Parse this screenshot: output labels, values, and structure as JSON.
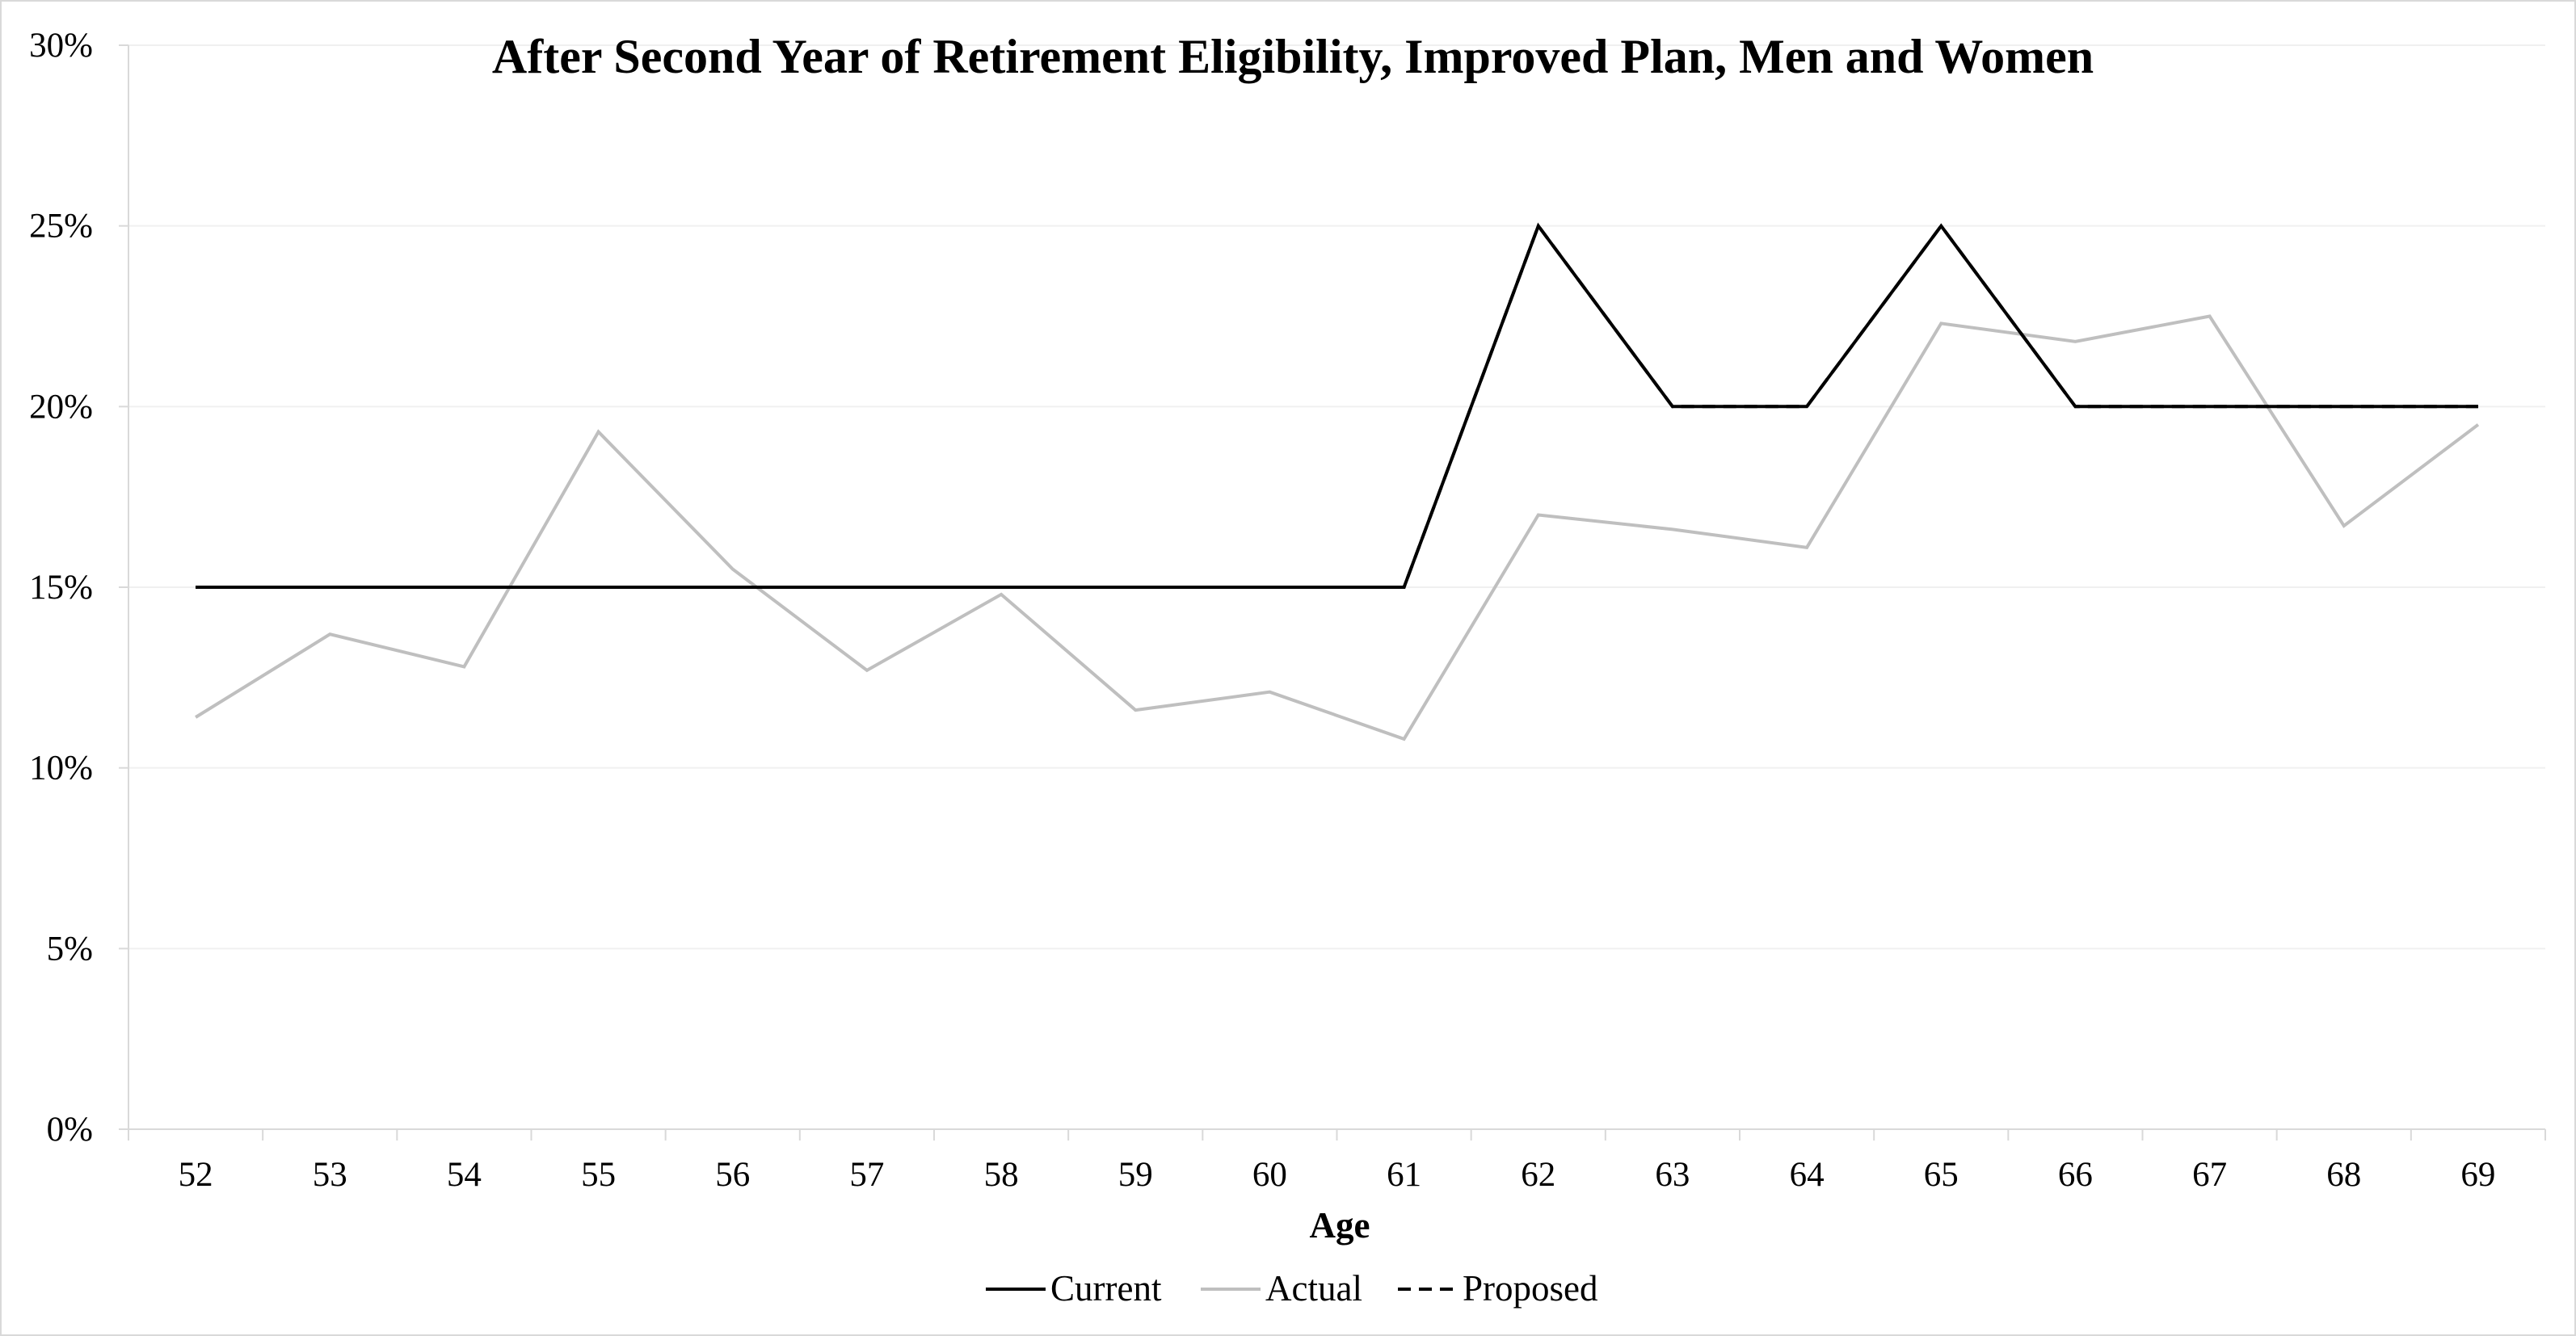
{
  "chart_data": {
    "type": "line",
    "title": "After Second Year of Retirement Eligibility, Improved Plan, Men and Women",
    "xlabel": "Age",
    "ylabel": "",
    "x": [
      "52",
      "53",
      "54",
      "55",
      "56",
      "57",
      "58",
      "59",
      "60",
      "61",
      "62",
      "63",
      "64",
      "65",
      "66",
      "67",
      "68",
      "69"
    ],
    "ylim": [
      0,
      30
    ],
    "yticks": [
      0,
      5,
      10,
      15,
      20,
      25,
      30
    ],
    "ytick_labels": [
      "0%",
      "5%",
      "10%",
      "15%",
      "20%",
      "25%",
      "30%"
    ],
    "grid": "horizontal",
    "legend_position": "bottom",
    "series": [
      {
        "name": "Current",
        "color": "#000000",
        "line_style": "solid",
        "values": [
          15,
          15,
          15,
          15,
          15,
          15,
          15,
          15,
          15,
          15,
          25,
          20,
          20,
          25,
          20,
          20,
          20,
          20
        ]
      },
      {
        "name": "Actual",
        "color": "#bfbfbf",
        "line_style": "solid",
        "values": [
          11.4,
          13.7,
          12.8,
          19.3,
          15.5,
          12.7,
          14.8,
          11.6,
          12.1,
          10.8,
          17.0,
          16.6,
          16.1,
          22.3,
          21.8,
          22.5,
          16.7,
          19.5
        ]
      },
      {
        "name": "Proposed",
        "color": "#000000",
        "line_style": "dashed",
        "values": [
          15,
          15,
          15,
          15,
          15,
          15,
          15,
          15,
          15,
          15,
          25,
          20,
          20,
          25,
          20,
          20,
          20,
          20
        ]
      }
    ]
  }
}
